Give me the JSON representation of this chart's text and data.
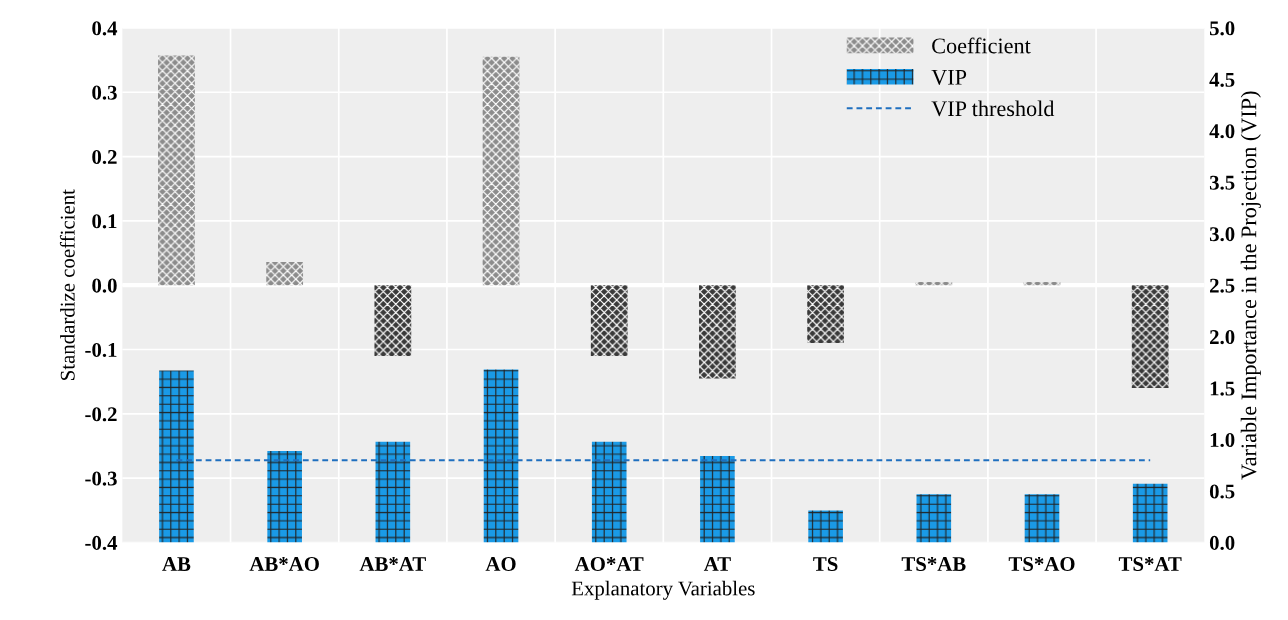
{
  "chart_data": {
    "type": "bar",
    "xlabel": "Explanatory Variables",
    "ylabel": "Standardize coefficient",
    "y2label": "Variable Importance in the Projection (VIP)",
    "categories": [
      "AB",
      "AB*AO",
      "AB*AT",
      "AO",
      "AO*AT",
      "AT",
      "TS",
      "TS*AB",
      "TS*AO",
      "TS*AT"
    ],
    "series": [
      {
        "name": "Coefficient",
        "color": "#8c8c8c",
        "colors": [
          "#8c8c8c",
          "#8c8c8c",
          "#3a3a3a",
          "#8c8c8c",
          "#3a3a3a",
          "#3a3a3a",
          "#3a3a3a",
          "#8c8c8c",
          "#8c8c8c",
          "#3a3a3a"
        ],
        "values": [
          0.357,
          0.036,
          -0.11,
          0.355,
          -0.11,
          -0.145,
          -0.09,
          0.005,
          0.005,
          -0.16
        ]
      },
      {
        "name": "VIP",
        "color": "#1a9ae6",
        "axis": "y2",
        "values": [
          1.67,
          0.89,
          0.98,
          1.68,
          0.98,
          0.84,
          0.31,
          0.47,
          0.47,
          0.57
        ]
      }
    ],
    "ref_lines": [
      {
        "axis": "y2",
        "value": 0.8,
        "label": "VIP threshold",
        "color": "#1f6fbf",
        "line_style": "dashed"
      }
    ],
    "ylim": [
      -0.4,
      0.4
    ],
    "yticks": [
      {
        "value": -0.4,
        "label": "-0.4"
      },
      {
        "value": -0.3,
        "label": "-0.3"
      },
      {
        "value": -0.2,
        "label": "-0.2"
      },
      {
        "value": -0.1,
        "label": "-0.1"
      },
      {
        "value": 0,
        "label": "0.0"
      },
      {
        "value": 0.1,
        "label": "0.1"
      },
      {
        "value": 0.2,
        "label": "0.2"
      },
      {
        "value": 0.3,
        "label": "0.3"
      },
      {
        "value": 0.4,
        "label": "0.4"
      }
    ],
    "y2lim": [
      0,
      5
    ],
    "y2ticks": [
      {
        "value": 0,
        "label": "0.0"
      },
      {
        "value": 0.5,
        "label": "0.5"
      },
      {
        "value": 1,
        "label": "1.0"
      },
      {
        "value": 1.5,
        "label": "1.5"
      },
      {
        "value": 2,
        "label": "2.0"
      },
      {
        "value": 2.5,
        "label": "2.5"
      },
      {
        "value": 3,
        "label": "3.0"
      },
      {
        "value": 3.5,
        "label": "3.5"
      },
      {
        "value": 4,
        "label": "4.0"
      },
      {
        "value": 4.5,
        "label": "4.5"
      },
      {
        "value": 5,
        "label": "5.0"
      }
    ],
    "grid": true,
    "legend": "top right"
  }
}
